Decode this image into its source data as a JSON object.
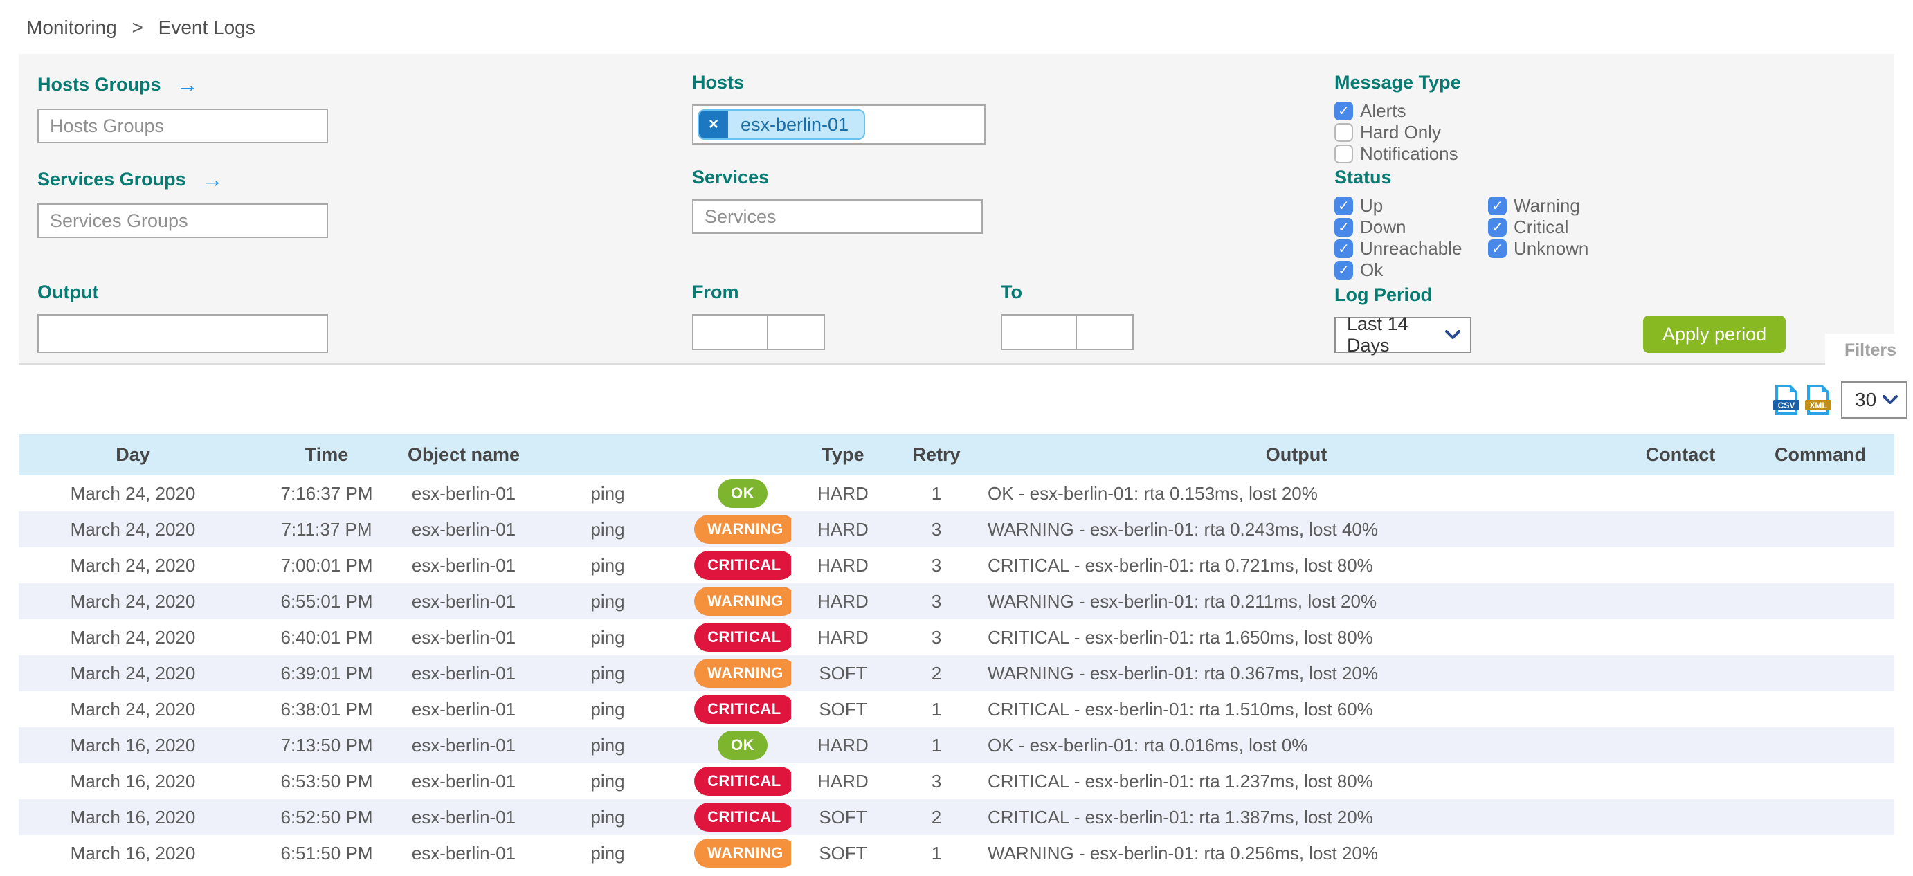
{
  "breadcrumb": {
    "items": [
      "Monitoring",
      "Event Logs"
    ],
    "separator": ">"
  },
  "filters": {
    "hosts_groups": {
      "label": "Hosts Groups",
      "arrow": "→",
      "placeholder": "Hosts Groups",
      "value": ""
    },
    "services_groups": {
      "label": "Services Groups",
      "arrow": "→",
      "placeholder": "Services Groups",
      "value": ""
    },
    "output": {
      "label": "Output",
      "value": "",
      "placeholder": ""
    },
    "hosts": {
      "label": "Hosts",
      "chips": [
        {
          "text": "esx-berlin-01",
          "remove_glyph": "×"
        }
      ]
    },
    "services": {
      "label": "Services",
      "placeholder": "Services",
      "value": ""
    },
    "from": {
      "label": "From",
      "date_value": "",
      "time_value": ""
    },
    "to": {
      "label": "To",
      "date_value": "",
      "time_value": ""
    },
    "message_type": {
      "label": "Message Type",
      "options": [
        {
          "label": "Alerts",
          "checked": true
        },
        {
          "label": "Hard Only",
          "checked": false
        },
        {
          "label": "Notifications",
          "checked": false
        }
      ]
    },
    "status": {
      "label": "Status",
      "col1": [
        {
          "label": "Up",
          "checked": true
        },
        {
          "label": "Down",
          "checked": true
        },
        {
          "label": "Unreachable",
          "checked": true
        }
      ],
      "col2": [
        {
          "label": "Ok",
          "checked": true
        },
        {
          "label": "Warning",
          "checked": true
        },
        {
          "label": "Critical",
          "checked": true
        },
        {
          "label": "Unknown",
          "checked": true
        }
      ]
    },
    "log_period": {
      "label": "Log Period",
      "selected": "Last 14 Days"
    },
    "apply_button_label": "Apply period",
    "filters_tab_label": "Filters"
  },
  "toolbar": {
    "csv_label": "CSV",
    "xml_label": "XML",
    "page_size": "30"
  },
  "table": {
    "headers": [
      "Day",
      "Time",
      "Object name",
      "",
      "",
      "Type",
      "Retry",
      "Output",
      "Contact",
      "Command"
    ],
    "rows": [
      {
        "day": "March 24, 2020",
        "time": "7:16:37 PM",
        "object": "esx-berlin-01",
        "service": "ping",
        "status": "OK",
        "type": "HARD",
        "retry": "1",
        "output": "OK - esx-berlin-01: rta 0.153ms, lost 20%",
        "contact": "",
        "command": ""
      },
      {
        "day": "March 24, 2020",
        "time": "7:11:37 PM",
        "object": "esx-berlin-01",
        "service": "ping",
        "status": "WARNING",
        "type": "HARD",
        "retry": "3",
        "output": "WARNING - esx-berlin-01: rta 0.243ms, lost 40%",
        "contact": "",
        "command": ""
      },
      {
        "day": "March 24, 2020",
        "time": "7:00:01 PM",
        "object": "esx-berlin-01",
        "service": "ping",
        "status": "CRITICAL",
        "type": "HARD",
        "retry": "3",
        "output": "CRITICAL - esx-berlin-01: rta 0.721ms, lost 80%",
        "contact": "",
        "command": ""
      },
      {
        "day": "March 24, 2020",
        "time": "6:55:01 PM",
        "object": "esx-berlin-01",
        "service": "ping",
        "status": "WARNING",
        "type": "HARD",
        "retry": "3",
        "output": "WARNING - esx-berlin-01: rta 0.211ms, lost 20%",
        "contact": "",
        "command": ""
      },
      {
        "day": "March 24, 2020",
        "time": "6:40:01 PM",
        "object": "esx-berlin-01",
        "service": "ping",
        "status": "CRITICAL",
        "type": "HARD",
        "retry": "3",
        "output": "CRITICAL - esx-berlin-01: rta 1.650ms, lost 80%",
        "contact": "",
        "command": ""
      },
      {
        "day": "March 24, 2020",
        "time": "6:39:01 PM",
        "object": "esx-berlin-01",
        "service": "ping",
        "status": "WARNING",
        "type": "SOFT",
        "retry": "2",
        "output": "WARNING - esx-berlin-01: rta 0.367ms, lost 20%",
        "contact": "",
        "command": ""
      },
      {
        "day": "March 24, 2020",
        "time": "6:38:01 PM",
        "object": "esx-berlin-01",
        "service": "ping",
        "status": "CRITICAL",
        "type": "SOFT",
        "retry": "1",
        "output": "CRITICAL - esx-berlin-01: rta 1.510ms, lost 60%",
        "contact": "",
        "command": ""
      },
      {
        "day": "March 16, 2020",
        "time": "7:13:50 PM",
        "object": "esx-berlin-01",
        "service": "ping",
        "status": "OK",
        "type": "HARD",
        "retry": "1",
        "output": "OK - esx-berlin-01: rta 0.016ms, lost 0%",
        "contact": "",
        "command": ""
      },
      {
        "day": "March 16, 2020",
        "time": "6:53:50 PM",
        "object": "esx-berlin-01",
        "service": "ping",
        "status": "CRITICAL",
        "type": "HARD",
        "retry": "3",
        "output": "CRITICAL - esx-berlin-01: rta 1.237ms, lost 80%",
        "contact": "",
        "command": ""
      },
      {
        "day": "March 16, 2020",
        "time": "6:52:50 PM",
        "object": "esx-berlin-01",
        "service": "ping",
        "status": "CRITICAL",
        "type": "SOFT",
        "retry": "2",
        "output": "CRITICAL - esx-berlin-01: rta 1.387ms, lost 20%",
        "contact": "",
        "command": ""
      },
      {
        "day": "March 16, 2020",
        "time": "6:51:50 PM",
        "object": "esx-berlin-01",
        "service": "ping",
        "status": "WARNING",
        "type": "SOFT",
        "retry": "1",
        "output": "WARNING - esx-berlin-01: rta 0.256ms, lost 20%",
        "contact": "",
        "command": ""
      }
    ]
  },
  "colors": {
    "label_teal": "#077a72",
    "checkbox_blue": "#4788e9",
    "apply_green": "#88b922",
    "table_header_blue": "#d4edf8",
    "row_stripe": "#eef1fa",
    "status_badges": {
      "OK": "#7db52f",
      "WARNING": "#f5913c",
      "CRITICAL": "#e0153d"
    },
    "chip_bg": "#c3e8fb",
    "chip_border": "#69c1ee",
    "chip_x_bg": "#1c78c0",
    "csv_banner": "#1b5fa6",
    "xml_banner": "#bf8f1a",
    "file_icon_blue": "#2aa4e6"
  }
}
